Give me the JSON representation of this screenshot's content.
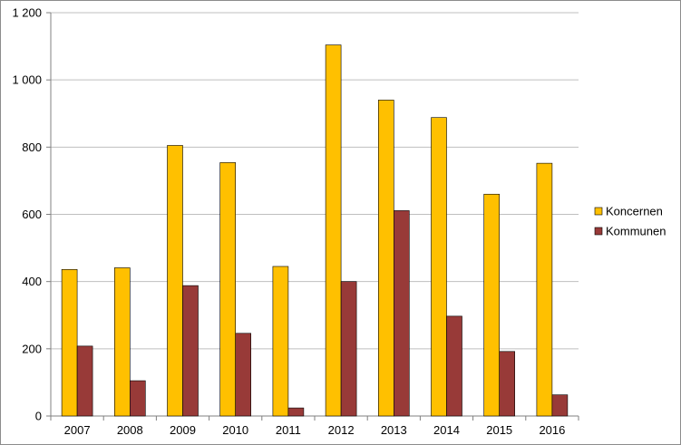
{
  "chart_data": {
    "type": "bar",
    "title": "",
    "xlabel": "",
    "ylabel": "",
    "categories": [
      "2007",
      "2008",
      "2009",
      "2010",
      "2011",
      "2012",
      "2013",
      "2014",
      "2015",
      "2016"
    ],
    "series": [
      {
        "name": "Koncernen",
        "color": "#ffc000",
        "values": [
          436,
          441,
          805,
          754,
          445,
          1104,
          940,
          888,
          660,
          752
        ]
      },
      {
        "name": "Kommunen",
        "color": "#983a38",
        "values": [
          208,
          105,
          388,
          246,
          24,
          400,
          611,
          297,
          192,
          63
        ]
      }
    ],
    "ylim": [
      0,
      1200
    ],
    "yticks": [
      0,
      200,
      400,
      600,
      800,
      1000,
      1200
    ],
    "ytick_labels": [
      "0",
      "200",
      "400",
      "600",
      "800",
      "1 000",
      "1 200"
    ],
    "grid": true,
    "legend": "right"
  }
}
